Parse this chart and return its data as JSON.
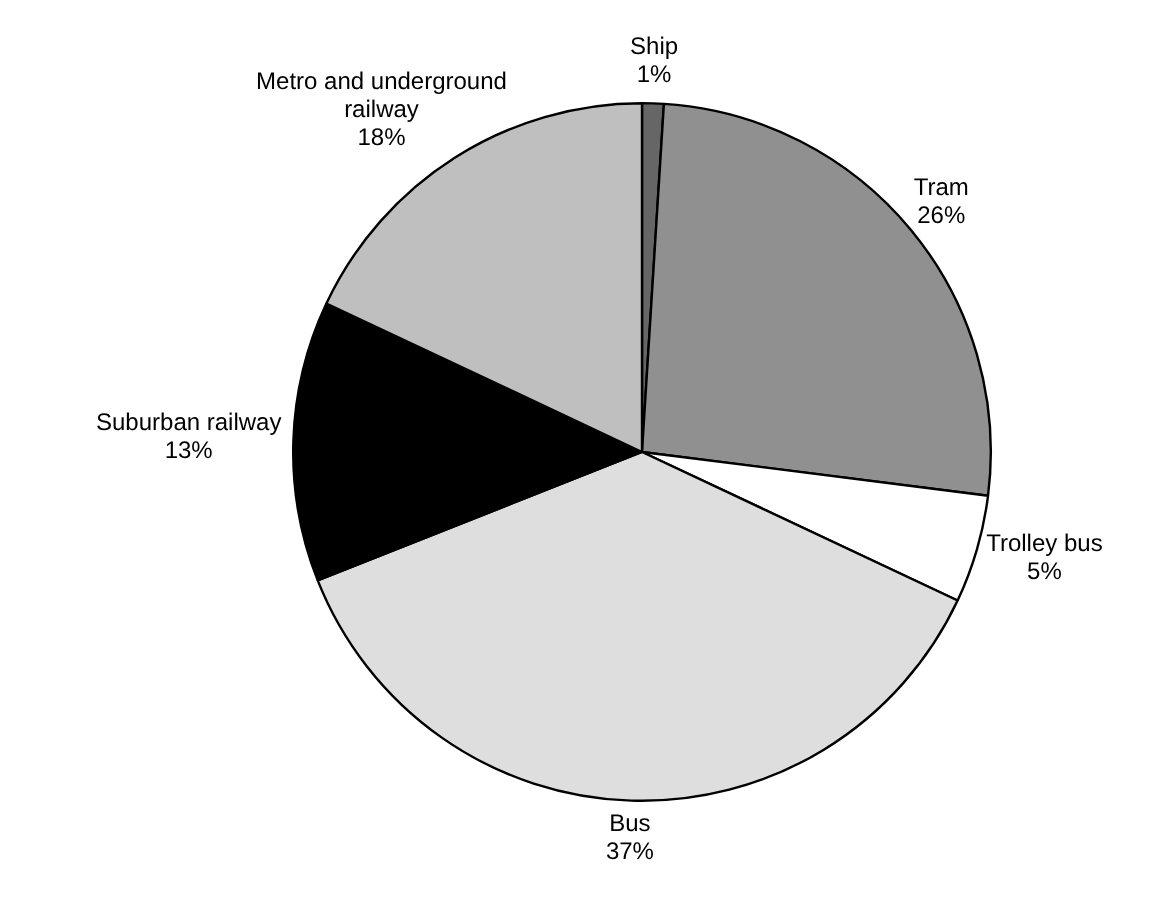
{
  "chart_data": {
    "type": "pie",
    "categories": [
      "Ship",
      "Tram",
      "Trolley bus",
      "Bus",
      "Suburban railway",
      "Metro and underground railway"
    ],
    "values": [
      1,
      26,
      5,
      37,
      13,
      18
    ],
    "value_labels": [
      "1%",
      "26%",
      "5%",
      "37%",
      "13%",
      "18%"
    ],
    "colors": [
      "#666666",
      "#909090",
      "#ffffff",
      "#dedede",
      "#000000",
      "#bfbfbf"
    ],
    "legend": false
  }
}
